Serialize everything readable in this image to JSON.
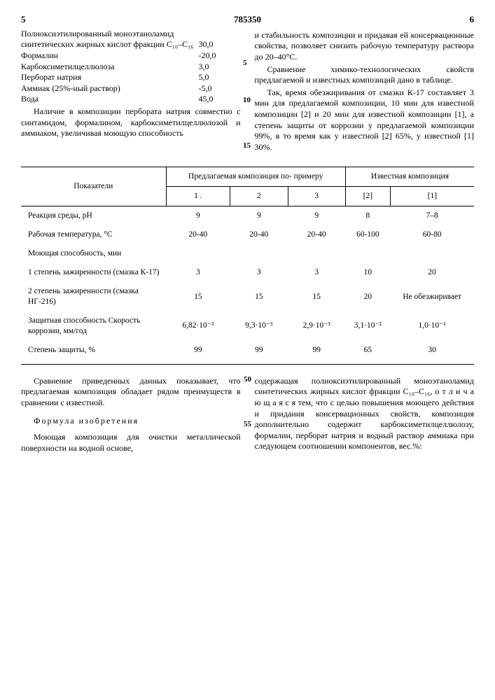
{
  "header": {
    "left_page": "5",
    "doc_number": "785350",
    "right_page": "6"
  },
  "left_col": {
    "ingredients": [
      {
        "label": "Полиоксиэтилированный моноэтаноламид синтетических жирных кислот фракции С₁₀–С₁₆",
        "value": "30,0"
      },
      {
        "label": "Формалин",
        "value": "-20,0"
      },
      {
        "label": "Карбоксиметилцеллюлоза",
        "value": "3,0"
      },
      {
        "label": "Перборат натрия",
        "value": "5,0"
      },
      {
        "label": "Аммиак (25%-ный раствор)",
        "value": "-5,0"
      },
      {
        "label": "Вода",
        "value": "45,0"
      }
    ],
    "para": "Наличие в композиции пербората натрия совместно с синтамидом, формалином, карбоксиметилцеллюлозой и аммиаком, увеличивая моющую способность"
  },
  "right_col": {
    "p1": "и стабильность композиции и придавая ей консервационные свойства, позволяет снизить рабочую температуру раствора до 20–40°С.",
    "p2": "Сравнение химико-технологических свойств предлагаемой и известных композиций дано в таблице.",
    "p3": "Так, время обезжиривания от смазки К-17 составляет 3 мин для предлагаемой композиции, 10 мин для известной композиции [2] и 20 мин для известной композиции [1], а степень защиты от коррозии у предлагаемой композиции 99%, в то время как у известной [2] 65%, у известной [1] 30%."
  },
  "side_nums": {
    "n5": "5",
    "n10": "10",
    "n15": "15"
  },
  "table": {
    "head_indicator": "Показатели",
    "head_proposed": "Предлагаемая композиция по- примеру",
    "head_known": "Известная композиция",
    "sub": [
      "1 .",
      "2",
      "3",
      "[2]",
      "[1]"
    ],
    "rows": [
      {
        "label": "Реакция среды, pH",
        "c": [
          "9",
          "9",
          "9",
          "8",
          "7–8"
        ]
      },
      {
        "label": "Рабочая температура, °С",
        "c": [
          "20-40",
          "20-40",
          "20-40",
          "60-100",
          "60-80"
        ]
      },
      {
        "label": "Моющая способность, мин",
        "c": [
          "",
          "",
          "",
          "",
          ""
        ]
      },
      {
        "label": "1 степень зажиренности (смазка К-17)",
        "c": [
          "3",
          "3",
          "3",
          "10",
          "20"
        ]
      },
      {
        "label": "2 степень зажиренности (смазка НГ-216)",
        "c": [
          "15",
          "15",
          "15",
          "20",
          "Не обезжиривает"
        ]
      },
      {
        "label": "Защитная способность Скорость коррозии, мм/год",
        "c": [
          "6,82·10⁻³",
          "9,3·10⁻³",
          "2,9·10⁻³",
          "3,1·10⁻²",
          "1,0·10⁻¹"
        ]
      },
      {
        "label": "Степень защиты, %",
        "c": [
          "99",
          "99",
          "99",
          "65",
          "30"
        ]
      }
    ]
  },
  "bottom": {
    "left_p1": "Сравнение приведенных данных показывает, что предлагаемая композиция обладает рядом преимуществ в сравнении с известной.",
    "formula_title": "Формула изобретения",
    "left_p2": "Моющая композиция для очистки металлической поверхности на водной основе,",
    "right_p": "содержащая полиоксиэтилированный моноэтаноламид синтетических жирных кислот фракции С₁₀–С₁₆, о т л и ч а ю щ а я с я  тем, что с целью повышения моющего действия и придания консервационных свойств, композиция дополнительно содержит карбоксиметилцеллюлозу, формалин, перборат натрия и водный раствор аммиака при следующем соотношении компонентов, вес.%:",
    "n50": "50",
    "n55": "55"
  }
}
